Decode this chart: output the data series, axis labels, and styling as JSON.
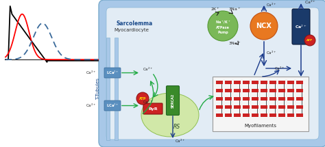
{
  "bg_color": "#ffffff",
  "sarcolemma_color": "#a8c8e8",
  "cell_fill": "#dde8f2",
  "sr_color": "#c8e89a",
  "sr_edge": "#88bb44",
  "lchannel_color": "#5a8fbf",
  "serca_color": "#3a8a2a",
  "ryr_color": "#cc2222",
  "ncx_color": "#e87820",
  "pump_color": "#7ab858",
  "atp_color": "#cc2222",
  "atp_text_color": "#ffd700",
  "myofilament_color": "#cc2222",
  "dark_blue": "#1a3a6a",
  "arrow_green": "#22aa44",
  "arrow_blue": "#1a3a8a",
  "arrow_dark": "#222222",
  "text_dark": "#222222",
  "sarcolemma_label": "Sarcolemma",
  "myocardiocyte_label": "Myocardiocyte",
  "t_tubules_label": "T-Tubules",
  "myofilaments_label": "Myofilaments"
}
